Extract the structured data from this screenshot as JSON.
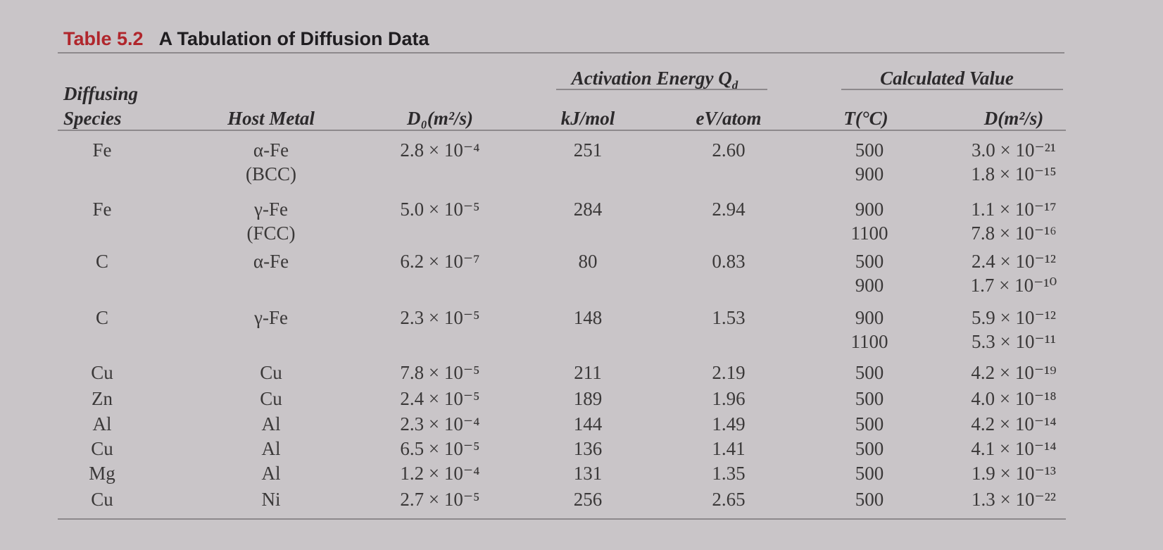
{
  "title": {
    "label": "Table 5.2",
    "text": "A Tabulation of Diffusion Data"
  },
  "header": {
    "species": [
      "Diffusing",
      "Species"
    ],
    "host": "Host Metal",
    "d0": "D₀(m²/s)",
    "activation_energy": {
      "text": "Activation Energy",
      "symbol": "Q",
      "subscript": "d"
    },
    "kj": "kJ/mol",
    "ev": "eV/atom",
    "calculated": "Calculated Value",
    "temp": "T(°C)",
    "d": "D(m²/s)"
  },
  "table": {
    "rows": [
      {
        "species": "Fe",
        "host": [
          "α-Fe",
          "(BCC)"
        ],
        "d0": "2.8 × 10⁻⁴",
        "kj": 251,
        "ev": "2.60",
        "temps": [
          500,
          900
        ],
        "d": [
          "3.0 × 10⁻²¹",
          "1.8 × 10⁻¹⁵"
        ]
      },
      {
        "species": "Fe",
        "host": [
          "γ-Fe",
          "(FCC)"
        ],
        "d0": "5.0 × 10⁻⁵",
        "kj": 284,
        "ev": "2.94",
        "temps": [
          900,
          1100
        ],
        "d": [
          "1.1 × 10⁻¹⁷",
          "7.8 × 10⁻¹⁶"
        ]
      },
      {
        "species": "C",
        "host": [
          "α-Fe"
        ],
        "d0": "6.2 × 10⁻⁷",
        "kj": 80,
        "ev": "0.83",
        "temps": [
          500,
          900
        ],
        "d": [
          "2.4 × 10⁻¹²",
          "1.7 × 10⁻¹⁰"
        ]
      },
      {
        "species": "C",
        "host": [
          "γ-Fe"
        ],
        "d0": "2.3 × 10⁻⁵",
        "kj": 148,
        "ev": "1.53",
        "temps": [
          900,
          1100
        ],
        "d": [
          "5.9 × 10⁻¹²",
          "5.3 × 10⁻¹¹"
        ]
      },
      {
        "species": "Cu",
        "host": [
          "Cu"
        ],
        "d0": "7.8 × 10⁻⁵",
        "kj": 211,
        "ev": "2.19",
        "temps": [
          500
        ],
        "d": [
          "4.2 × 10⁻¹⁹"
        ]
      },
      {
        "species": "Zn",
        "host": [
          "Cu"
        ],
        "d0": "2.4 × 10⁻⁵",
        "kj": 189,
        "ev": "1.96",
        "temps": [
          500
        ],
        "d": [
          "4.0 × 10⁻¹⁸"
        ]
      },
      {
        "species": "Al",
        "host": [
          "Al"
        ],
        "d0": "2.3 × 10⁻⁴",
        "kj": 144,
        "ev": "1.49",
        "temps": [
          500
        ],
        "d": [
          "4.2 × 10⁻¹⁴"
        ]
      },
      {
        "species": "Cu",
        "host": [
          "Al"
        ],
        "d0": "6.5 × 10⁻⁵",
        "kj": 136,
        "ev": "1.41",
        "temps": [
          500
        ],
        "d": [
          "4.1 × 10⁻¹⁴"
        ]
      },
      {
        "species": "Mg",
        "host": [
          "Al"
        ],
        "d0": "1.2 × 10⁻⁴",
        "kj": 131,
        "ev": "1.35",
        "temps": [
          500
        ],
        "d": [
          "1.9 × 10⁻¹³"
        ]
      },
      {
        "species": "Cu",
        "host": [
          "Ni"
        ],
        "d0": "2.7 × 10⁻⁵",
        "kj": 256,
        "ev": "2.65",
        "temps": [
          500
        ],
        "d": [
          "1.3 × 10⁻²²"
        ]
      }
    ]
  }
}
